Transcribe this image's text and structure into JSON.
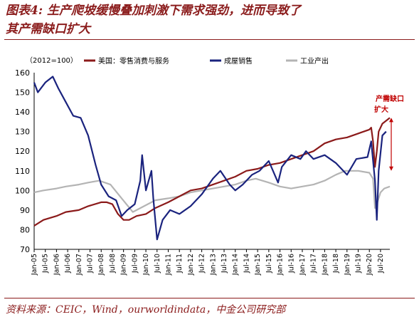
{
  "header": {
    "title_line1": "图表4: 生产爬坡缓慢叠加刺激下需求强劲，进而导致了",
    "title_line2": "其产需缺口扩大"
  },
  "footer": {
    "source": "资料来源：CEIC，Wind，ourworldindata，中金公司研究部"
  },
  "chart_data": {
    "type": "line",
    "unit_label": "（2012=100）",
    "ylim": [
      70,
      160
    ],
    "yticks": [
      70,
      80,
      90,
      100,
      110,
      120,
      130,
      140,
      150,
      160
    ],
    "x_start": "2005-01",
    "x_end": "2020-12",
    "x_ticks": [
      "Jan-05",
      "Jul-05",
      "Jan-06",
      "Jul-06",
      "Jan-07",
      "Jul-07",
      "Jan-08",
      "Jul-08",
      "Jan-09",
      "Jul-09",
      "Jan-10",
      "Jul-10",
      "Jan-11",
      "Jul-11",
      "Jan-12",
      "Jul-12",
      "Jan-13",
      "Jul-13",
      "Jan-14",
      "Jul-14",
      "Jan-15",
      "Jul-15",
      "Jan-16",
      "Jul-16",
      "Jan-17",
      "Jul-17",
      "Jan-18",
      "Jul-18",
      "Jan-19",
      "Jul-19",
      "Jan-20",
      "Jul-20"
    ],
    "legend_position": "top",
    "grid": false,
    "annotation": {
      "line1": "产需缺口",
      "line2": "扩大",
      "color": "#c00000",
      "x": "2020-12",
      "y_from": 137,
      "y_to": 110
    },
    "series": [
      {
        "name": "美国：零售消费与服务",
        "color": "#8b1a1a",
        "points": [
          [
            "2005-01",
            82
          ],
          [
            "2005-06",
            85
          ],
          [
            "2006-01",
            87
          ],
          [
            "2006-06",
            89
          ],
          [
            "2007-01",
            90
          ],
          [
            "2007-06",
            92
          ],
          [
            "2008-01",
            94
          ],
          [
            "2008-04",
            94
          ],
          [
            "2008-07",
            93
          ],
          [
            "2008-10",
            88
          ],
          [
            "2009-01",
            85
          ],
          [
            "2009-04",
            85
          ],
          [
            "2009-08",
            87
          ],
          [
            "2010-01",
            88
          ],
          [
            "2010-06",
            91
          ],
          [
            "2011-01",
            94
          ],
          [
            "2011-07",
            97
          ],
          [
            "2012-01",
            100
          ],
          [
            "2012-07",
            101
          ],
          [
            "2013-01",
            103
          ],
          [
            "2013-07",
            105
          ],
          [
            "2014-01",
            107
          ],
          [
            "2014-07",
            110
          ],
          [
            "2015-01",
            111
          ],
          [
            "2015-07",
            113
          ],
          [
            "2016-01",
            114
          ],
          [
            "2016-07",
            116
          ],
          [
            "2017-01",
            118
          ],
          [
            "2017-07",
            120
          ],
          [
            "2018-01",
            124
          ],
          [
            "2018-07",
            126
          ],
          [
            "2019-01",
            127
          ],
          [
            "2019-07",
            129
          ],
          [
            "2020-01",
            131
          ],
          [
            "2020-02",
            132
          ],
          [
            "2020-03",
            125
          ],
          [
            "2020-04",
            112
          ],
          [
            "2020-05",
            120
          ],
          [
            "2020-06",
            130
          ],
          [
            "2020-08",
            134
          ],
          [
            "2020-12",
            137
          ]
        ]
      },
      {
        "name": "成屋销售",
        "color": "#1a237e",
        "points": [
          [
            "2005-01",
            155
          ],
          [
            "2005-03",
            150
          ],
          [
            "2005-07",
            155
          ],
          [
            "2005-11",
            158
          ],
          [
            "2006-02",
            152
          ],
          [
            "2006-06",
            145
          ],
          [
            "2006-10",
            138
          ],
          [
            "2007-02",
            137
          ],
          [
            "2007-06",
            128
          ],
          [
            "2007-10",
            113
          ],
          [
            "2008-01",
            103
          ],
          [
            "2008-05",
            97
          ],
          [
            "2008-09",
            95
          ],
          [
            "2008-12",
            87
          ],
          [
            "2009-03",
            90
          ],
          [
            "2009-07",
            93
          ],
          [
            "2009-10",
            105
          ],
          [
            "2009-11",
            118
          ],
          [
            "2010-01",
            100
          ],
          [
            "2010-04",
            110
          ],
          [
            "2010-05",
            96
          ],
          [
            "2010-07",
            75
          ],
          [
            "2010-10",
            85
          ],
          [
            "2011-02",
            90
          ],
          [
            "2011-07",
            88
          ],
          [
            "2012-01",
            92
          ],
          [
            "2012-07",
            98
          ],
          [
            "2013-01",
            106
          ],
          [
            "2013-05",
            110
          ],
          [
            "2013-10",
            103
          ],
          [
            "2014-01",
            100
          ],
          [
            "2014-05",
            103
          ],
          [
            "2014-10",
            108
          ],
          [
            "2015-02",
            110
          ],
          [
            "2015-07",
            115
          ],
          [
            "2015-12",
            104
          ],
          [
            "2016-02",
            112
          ],
          [
            "2016-07",
            118
          ],
          [
            "2016-12",
            116
          ],
          [
            "2017-03",
            120
          ],
          [
            "2017-07",
            116
          ],
          [
            "2018-01",
            118
          ],
          [
            "2018-07",
            114
          ],
          [
            "2019-01",
            108
          ],
          [
            "2019-06",
            116
          ],
          [
            "2019-12",
            117
          ],
          [
            "2020-02",
            125
          ],
          [
            "2020-04",
            105
          ],
          [
            "2020-05",
            85
          ],
          [
            "2020-06",
            110
          ],
          [
            "2020-08",
            128
          ],
          [
            "2020-10",
            130
          ]
        ]
      },
      {
        "name": "工业产出",
        "color": "#b4b4b4",
        "points": [
          [
            "2005-01",
            99
          ],
          [
            "2005-06",
            100
          ],
          [
            "2006-01",
            101
          ],
          [
            "2006-06",
            102
          ],
          [
            "2007-01",
            103
          ],
          [
            "2007-06",
            104
          ],
          [
            "2007-12",
            105
          ],
          [
            "2008-06",
            103
          ],
          [
            "2008-12",
            96
          ],
          [
            "2009-06",
            89
          ],
          [
            "2009-12",
            92
          ],
          [
            "2010-06",
            95
          ],
          [
            "2011-01",
            96
          ],
          [
            "2011-07",
            97
          ],
          [
            "2012-01",
            99
          ],
          [
            "2012-07",
            100
          ],
          [
            "2013-01",
            101
          ],
          [
            "2013-07",
            102
          ],
          [
            "2014-01",
            103
          ],
          [
            "2014-07",
            105
          ],
          [
            "2014-12",
            106
          ],
          [
            "2015-07",
            104
          ],
          [
            "2016-01",
            102
          ],
          [
            "2016-07",
            101
          ],
          [
            "2017-01",
            102
          ],
          [
            "2017-07",
            103
          ],
          [
            "2018-01",
            105
          ],
          [
            "2018-07",
            108
          ],
          [
            "2018-12",
            110
          ],
          [
            "2019-07",
            110
          ],
          [
            "2020-01",
            109
          ],
          [
            "2020-03",
            106
          ],
          [
            "2020-04",
            91
          ],
          [
            "2020-05",
            93
          ],
          [
            "2020-07",
            99
          ],
          [
            "2020-09",
            101
          ],
          [
            "2020-12",
            102
          ]
        ]
      }
    ]
  }
}
